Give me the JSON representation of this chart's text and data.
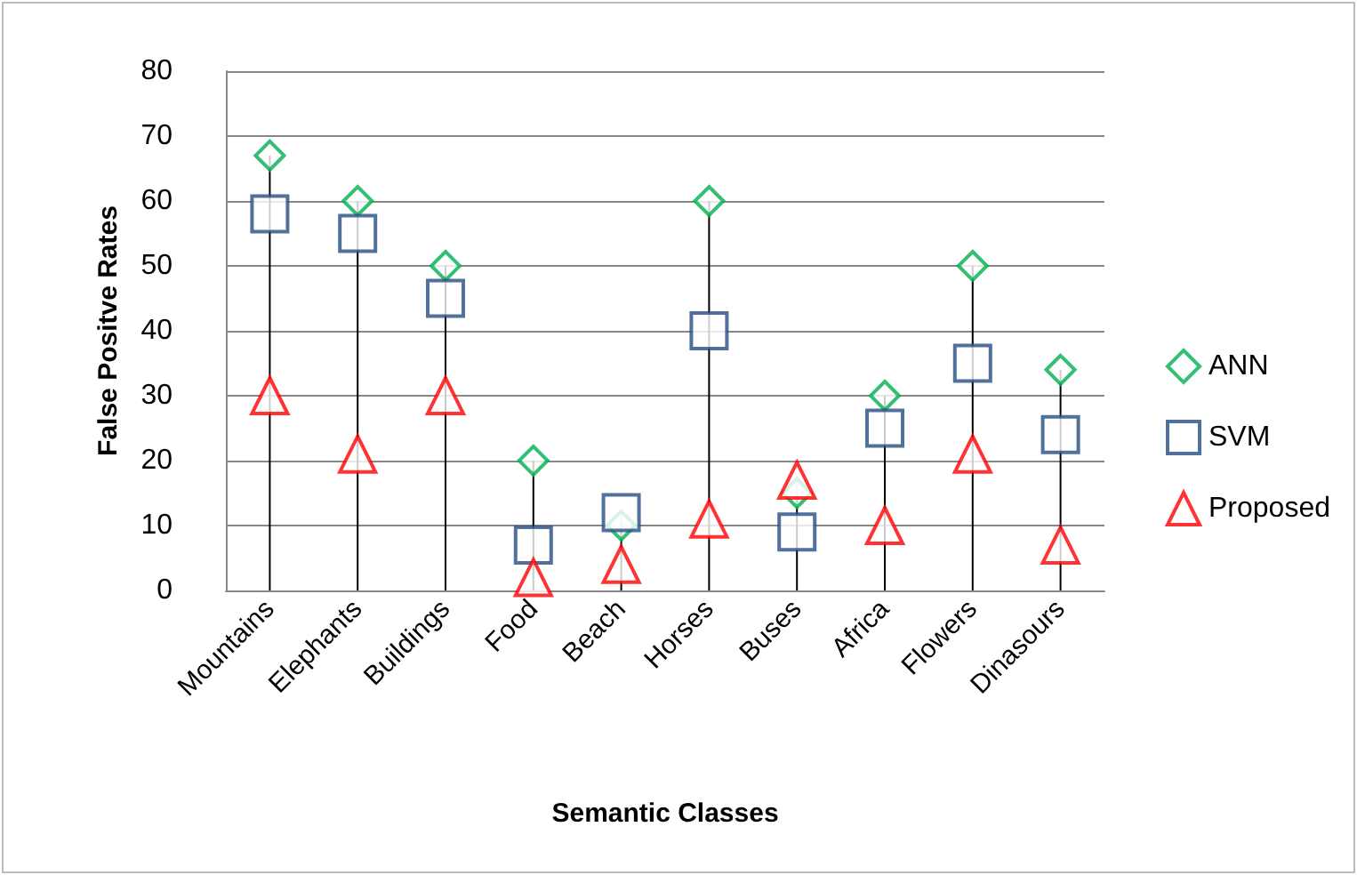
{
  "chart_data": {
    "type": "lollipop",
    "xlabel": "Semantic Classes",
    "ylabel": "False Positve Rates",
    "categories": [
      "Mountains",
      "Elephants",
      "Buildings",
      "Food",
      "Beach",
      "Horses",
      "Buses",
      "Africa",
      "Flowers",
      "Dinasours"
    ],
    "series": [
      {
        "name": "ANN",
        "color": "#00b050",
        "marker": "diamond",
        "values": [
          67,
          60,
          50,
          20,
          10,
          60,
          15,
          30,
          50,
          34
        ]
      },
      {
        "name": "SVM",
        "color": "#254d84",
        "marker": "square",
        "values": [
          58,
          55,
          45,
          7,
          12,
          40,
          9,
          25,
          35,
          24
        ]
      },
      {
        "name": "Proposed",
        "color": "#ff0000",
        "marker": "triangle",
        "values": [
          30,
          21,
          30,
          2,
          4,
          11,
          17,
          10,
          21,
          7
        ]
      }
    ],
    "ylim": [
      0,
      80
    ],
    "yticks": [
      0,
      10,
      20,
      30,
      40,
      50,
      60,
      70,
      80
    ],
    "grid": "y",
    "legend": "right"
  }
}
